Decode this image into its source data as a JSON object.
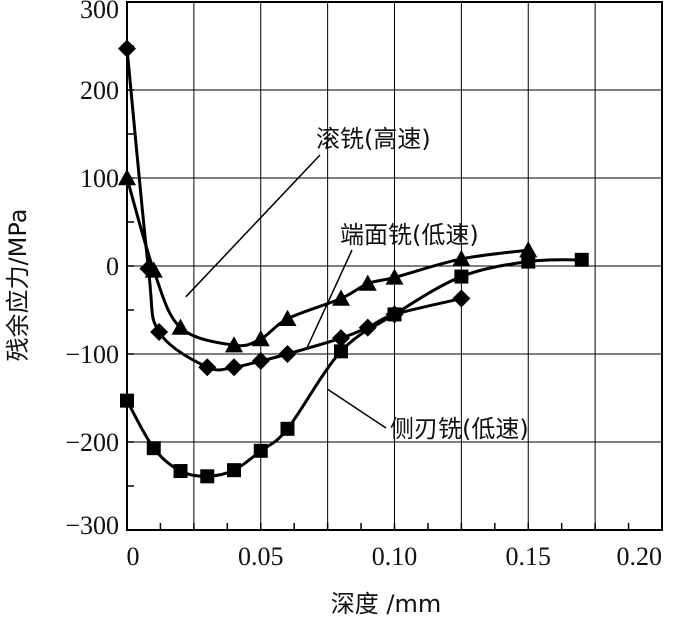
{
  "chart_data": {
    "type": "line",
    "xlabel": "深度 /mm",
    "ylabel": "残余应力/MPa",
    "xlim": [
      0,
      0.2
    ],
    "ylim": [
      -300,
      300
    ],
    "x_ticks": [
      "0",
      "0.05",
      "0.10",
      "0.15",
      "0.20"
    ],
    "y_ticks": [
      "300",
      "200",
      "100",
      "0",
      "−100",
      "−200",
      "−300"
    ],
    "grid": true,
    "annotations": [
      "滚铣(高速)",
      "端面铣(低速)",
      "侧刃铣(低速)"
    ],
    "series": [
      {
        "name": "滚铣(高速)",
        "marker": "diamond",
        "x": [
          0,
          0.008,
          0.012,
          0.03,
          0.04,
          0.05,
          0.06,
          0.08,
          0.09,
          0.1,
          0.125
        ],
        "y": [
          247,
          -3,
          -75,
          -115,
          -115,
          -108,
          -100,
          -82,
          -70,
          -55,
          -37
        ]
      },
      {
        "name": "端面铣(低速)",
        "marker": "triangle",
        "x": [
          0,
          0.01,
          0.02,
          0.04,
          0.05,
          0.06,
          0.08,
          0.09,
          0.1,
          0.125,
          0.15
        ],
        "y": [
          100,
          -5,
          -70,
          -90,
          -83,
          -60,
          -37,
          -20,
          -13,
          8,
          18
        ]
      },
      {
        "name": "侧刃铣(低速)",
        "marker": "square",
        "x": [
          0,
          0.01,
          0.02,
          0.03,
          0.04,
          0.05,
          0.06,
          0.08,
          0.1,
          0.125,
          0.15,
          0.17
        ],
        "y": [
          -153,
          -207,
          -233,
          -239,
          -232,
          -210,
          -185,
          -97,
          -55,
          -12,
          5,
          7
        ]
      }
    ]
  }
}
